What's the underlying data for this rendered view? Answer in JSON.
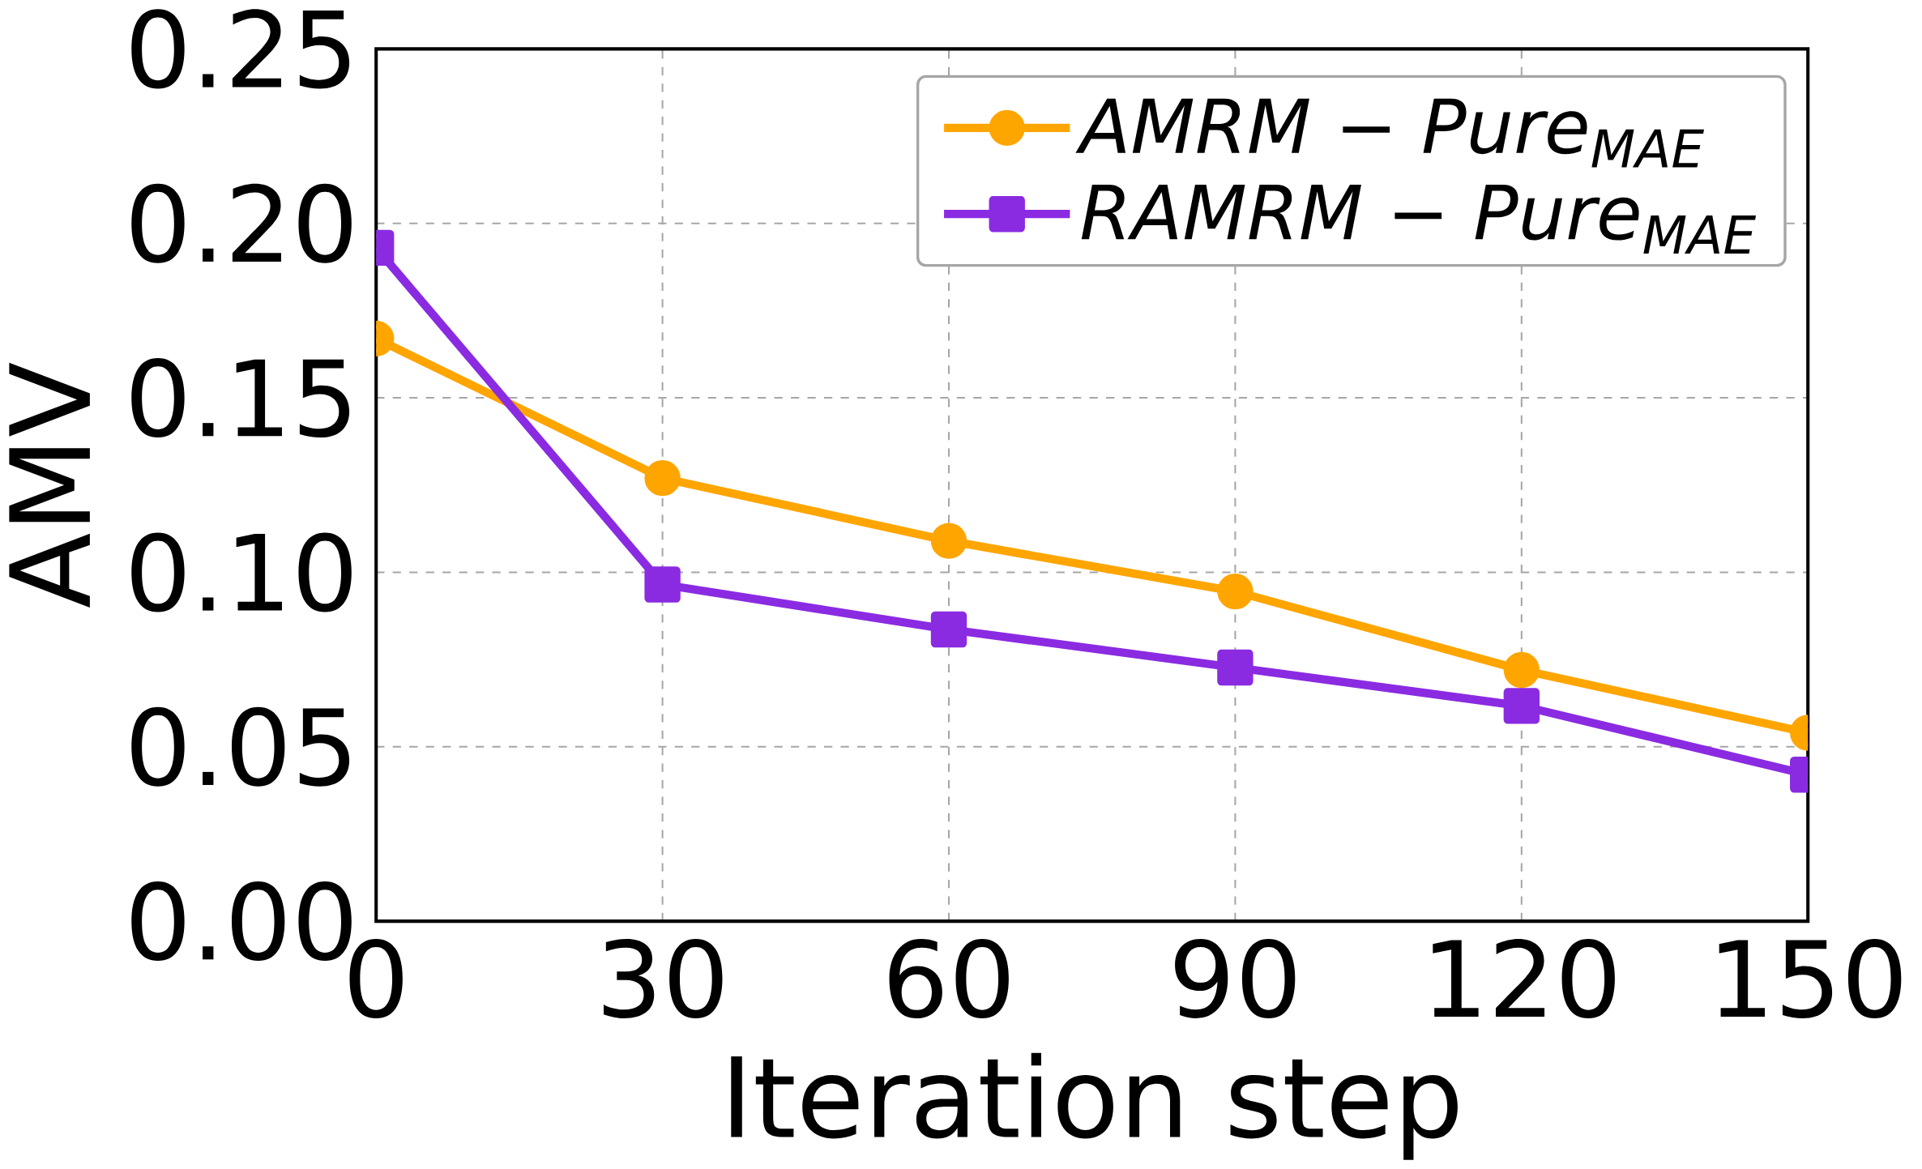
{
  "chart_data": {
    "type": "line",
    "xlabel": "Iteration step",
    "ylabel": "AMV",
    "x": [
      0,
      30,
      60,
      90,
      120,
      150
    ],
    "series": [
      {
        "name": "AMRM − Pure$_{MAE}$",
        "color": "#ffa500",
        "marker": "circle",
        "values": [
          0.167,
          0.127,
          0.109,
          0.0945,
          0.072,
          0.054
        ]
      },
      {
        "name": "RAMRM − Pure$_{MAE}$",
        "color": "#8a2be2",
        "marker": "square",
        "values": [
          0.193,
          0.0965,
          0.0836,
          0.0727,
          0.0617,
          0.042
        ]
      }
    ],
    "xlim": [
      0,
      150
    ],
    "xticks": [
      0,
      30,
      60,
      90,
      120,
      150
    ],
    "ylim": [
      0,
      0.25
    ],
    "yticks": [
      {
        "value": 0,
        "label": "0.00"
      },
      {
        "value": 0.05,
        "label": "0.05"
      },
      {
        "value": 0.1,
        "label": "0.10"
      },
      {
        "value": 0.15,
        "label": "0.15"
      },
      {
        "value": 0.2,
        "label": "0.20"
      },
      {
        "value": 0.25,
        "label": "0.25"
      }
    ],
    "grid": true,
    "legend": "top right",
    "line_style": "solid"
  }
}
